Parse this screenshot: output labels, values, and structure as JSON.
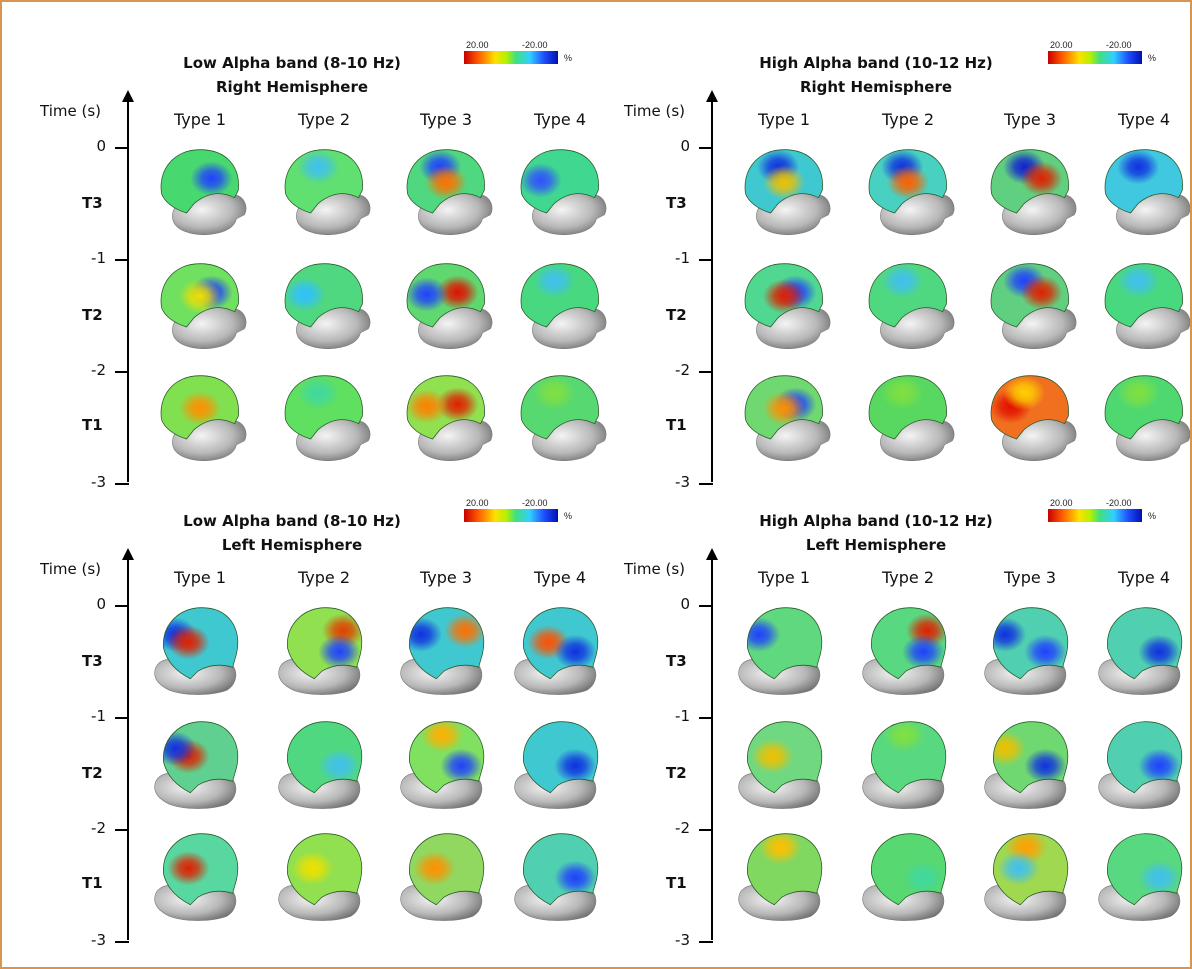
{
  "colorbar": {
    "max_label": "20.00",
    "min_label": "-20.00",
    "unit": "%",
    "colors": [
      "#c80000",
      "#ff5a00",
      "#ffe000",
      "#b4f000",
      "#40e080",
      "#30d0ff",
      "#2050ff",
      "#0010b0"
    ]
  },
  "axis": {
    "title": "Time (s)",
    "ticks": [
      "0",
      "-1",
      "-2",
      "-3"
    ],
    "period_labels": [
      "T3",
      "T2",
      "T1"
    ]
  },
  "types": [
    "Type 1",
    "Type 2",
    "Type 3",
    "Type 4"
  ],
  "panels": [
    {
      "title_line1": "Low Alpha band (8-10 Hz)",
      "title_line2": "Right Hemisphere",
      "view": "right",
      "maps": [
        [
          {
            "base": "#48d870",
            "spots": [
              {
                "c": "#2040ff",
                "pos": "back"
              }
            ]
          },
          {
            "base": "#60e070",
            "spots": [
              {
                "c": "#40c0f0",
                "pos": "top"
              }
            ]
          },
          {
            "base": "#50d880",
            "spots": [
              {
                "c": "#2040ff",
                "pos": "top"
              },
              {
                "c": "#ff7000",
                "pos": "mid"
              }
            ]
          },
          {
            "base": "#40d890",
            "spots": [
              {
                "c": "#3050ff",
                "pos": "front"
              }
            ]
          }
        ],
        [
          {
            "base": "#70e060",
            "spots": [
              {
                "c": "#2040ff",
                "pos": "back"
              },
              {
                "c": "#f0e000",
                "pos": "mid"
              }
            ]
          },
          {
            "base": "#50d880",
            "spots": [
              {
                "c": "#30c0ff",
                "pos": "front"
              }
            ]
          },
          {
            "base": "#60d870",
            "spots": [
              {
                "c": "#e01000",
                "pos": "back"
              },
              {
                "c": "#2040ff",
                "pos": "front"
              }
            ]
          },
          {
            "base": "#48d880",
            "spots": [
              {
                "c": "#40c0f0",
                "pos": "top"
              }
            ]
          }
        ],
        [
          {
            "base": "#80e050",
            "spots": [
              {
                "c": "#ff9000",
                "pos": "mid"
              }
            ]
          },
          {
            "base": "#60e060",
            "spots": [
              {
                "c": "#40d8a0",
                "pos": "top"
              }
            ]
          },
          {
            "base": "#90e050",
            "spots": [
              {
                "c": "#e02000",
                "pos": "back"
              },
              {
                "c": "#ff8000",
                "pos": "front"
              }
            ]
          },
          {
            "base": "#58d870",
            "spots": [
              {
                "c": "#80e040",
                "pos": "top"
              }
            ]
          }
        ]
      ]
    },
    {
      "title_line1": "High Alpha band (10-12 Hz)",
      "title_line2": "Right Hemisphere",
      "view": "right",
      "maps": [
        [
          {
            "base": "#40c8d0",
            "spots": [
              {
                "c": "#1030e0",
                "pos": "top"
              },
              {
                "c": "#f0c000",
                "pos": "mid"
              }
            ]
          },
          {
            "base": "#48d0c0",
            "spots": [
              {
                "c": "#1030e0",
                "pos": "top"
              },
              {
                "c": "#ff6000",
                "pos": "mid"
              }
            ]
          },
          {
            "base": "#60d080",
            "spots": [
              {
                "c": "#1020d0",
                "pos": "top"
              },
              {
                "c": "#e02000",
                "pos": "back"
              }
            ]
          },
          {
            "base": "#40c8e0",
            "spots": [
              {
                "c": "#1030e0",
                "pos": "top"
              }
            ]
          }
        ],
        [
          {
            "base": "#50d890",
            "spots": [
              {
                "c": "#2040ff",
                "pos": "back"
              },
              {
                "c": "#e02000",
                "pos": "mid"
              }
            ]
          },
          {
            "base": "#50d880",
            "spots": [
              {
                "c": "#40c0f0",
                "pos": "top"
              }
            ]
          },
          {
            "base": "#60d080",
            "spots": [
              {
                "c": "#2040ff",
                "pos": "top"
              },
              {
                "c": "#e02000",
                "pos": "back"
              }
            ]
          },
          {
            "base": "#48d880",
            "spots": [
              {
                "c": "#40c0f0",
                "pos": "top"
              }
            ]
          }
        ],
        [
          {
            "base": "#70d870",
            "spots": [
              {
                "c": "#2040ff",
                "pos": "back"
              },
              {
                "c": "#ff9000",
                "pos": "mid"
              }
            ]
          },
          {
            "base": "#58d860",
            "spots": [
              {
                "c": "#80e040",
                "pos": "top"
              }
            ]
          },
          {
            "base": "#f07020",
            "spots": [
              {
                "c": "#e01000",
                "pos": "front"
              },
              {
                "c": "#ffd000",
                "pos": "top"
              }
            ]
          },
          {
            "base": "#50d870",
            "spots": [
              {
                "c": "#80e040",
                "pos": "top"
              }
            ]
          }
        ]
      ]
    },
    {
      "title_line1": "Low Alpha band (8-10 Hz)",
      "title_line2": "Left Hemisphere",
      "view": "left",
      "maps": [
        [
          {
            "base": "#40c8d0",
            "spots": [
              {
                "c": "#1030e0",
                "pos": "back"
              },
              {
                "c": "#e02000",
                "pos": "mid"
              }
            ]
          },
          {
            "base": "#90e050",
            "spots": [
              {
                "c": "#e04000",
                "pos": "front"
              },
              {
                "c": "#2040ff",
                "pos": "low"
              }
            ]
          },
          {
            "base": "#40c8d0",
            "spots": [
              {
                "c": "#1030e0",
                "pos": "back"
              },
              {
                "c": "#ff7000",
                "pos": "front"
              }
            ]
          },
          {
            "base": "#40c8d0",
            "spots": [
              {
                "c": "#ff5000",
                "pos": "mid"
              },
              {
                "c": "#1030e0",
                "pos": "low"
              }
            ]
          }
        ],
        [
          {
            "base": "#60d090",
            "spots": [
              {
                "c": "#e02000",
                "pos": "mid"
              },
              {
                "c": "#1030e0",
                "pos": "back"
              }
            ]
          },
          {
            "base": "#50d880",
            "spots": [
              {
                "c": "#40c0f0",
                "pos": "low"
              }
            ]
          },
          {
            "base": "#80e060",
            "spots": [
              {
                "c": "#ffb000",
                "pos": "top"
              },
              {
                "c": "#2040ff",
                "pos": "low"
              }
            ]
          },
          {
            "base": "#40c8d0",
            "spots": [
              {
                "c": "#1030e0",
                "pos": "low"
              }
            ]
          }
        ],
        [
          {
            "base": "#58d8a0",
            "spots": [
              {
                "c": "#e02000",
                "pos": "mid"
              }
            ]
          },
          {
            "base": "#90e050",
            "spots": [
              {
                "c": "#f0e000",
                "pos": "mid"
              }
            ]
          },
          {
            "base": "#90d860",
            "spots": [
              {
                "c": "#ff9000",
                "pos": "mid"
              }
            ]
          },
          {
            "base": "#50d0b0",
            "spots": [
              {
                "c": "#2040ff",
                "pos": "low"
              }
            ]
          }
        ]
      ]
    },
    {
      "title_line1": "High Alpha band (10-12 Hz)",
      "title_line2": "Left Hemisphere",
      "view": "left",
      "maps": [
        [
          {
            "base": "#60d880",
            "spots": [
              {
                "c": "#2040ff",
                "pos": "back"
              }
            ]
          },
          {
            "base": "#58d880",
            "spots": [
              {
                "c": "#e02000",
                "pos": "front"
              },
              {
                "c": "#2040ff",
                "pos": "low"
              }
            ]
          },
          {
            "base": "#50d0b0",
            "spots": [
              {
                "c": "#1030e0",
                "pos": "back"
              },
              {
                "c": "#2040ff",
                "pos": "low"
              }
            ]
          },
          {
            "base": "#50d0b0",
            "spots": [
              {
                "c": "#1030e0",
                "pos": "low"
              }
            ]
          }
        ],
        [
          {
            "base": "#70d880",
            "spots": [
              {
                "c": "#f0c000",
                "pos": "mid"
              }
            ]
          },
          {
            "base": "#58d880",
            "spots": [
              {
                "c": "#80e040",
                "pos": "top"
              }
            ]
          },
          {
            "base": "#70d870",
            "spots": [
              {
                "c": "#f0c000",
                "pos": "back"
              },
              {
                "c": "#1030e0",
                "pos": "low"
              }
            ]
          },
          {
            "base": "#50d0b0",
            "spots": [
              {
                "c": "#2040ff",
                "pos": "low"
              }
            ]
          }
        ],
        [
          {
            "base": "#80d860",
            "spots": [
              {
                "c": "#ffc000",
                "pos": "top"
              }
            ]
          },
          {
            "base": "#58d870",
            "spots": [
              {
                "c": "#40d8a0",
                "pos": "low"
              }
            ]
          },
          {
            "base": "#a0d850",
            "spots": [
              {
                "c": "#ffa000",
                "pos": "top"
              },
              {
                "c": "#40c0f0",
                "pos": "mid"
              }
            ]
          },
          {
            "base": "#58d880",
            "spots": [
              {
                "c": "#40c0f0",
                "pos": "low"
              }
            ]
          }
        ]
      ]
    }
  ]
}
